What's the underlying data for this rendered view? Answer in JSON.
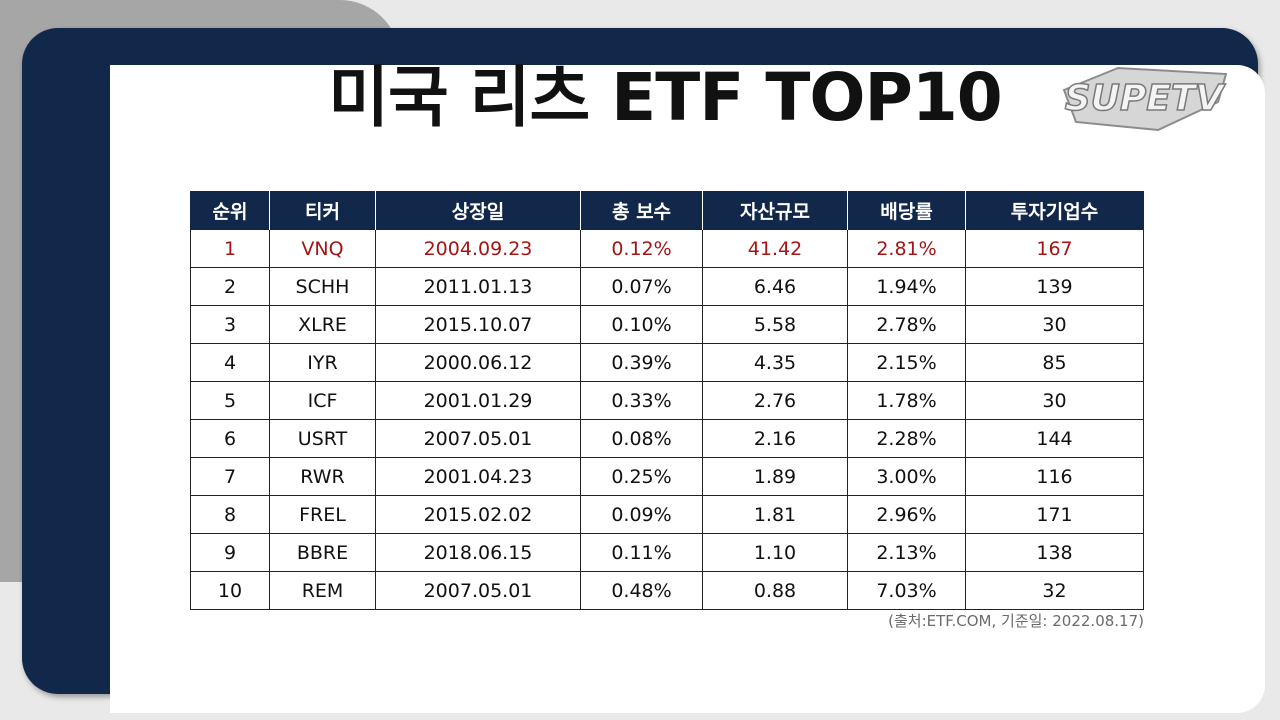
{
  "title": "미국 리츠 ETF TOP10",
  "logo_text": "SUPETV",
  "table": {
    "headers": [
      "순위",
      "티커",
      "상장일",
      "총 보수",
      "자산규모",
      "배당률",
      "투자기업수"
    ],
    "rows": [
      [
        "1",
        "VNQ",
        "2004.09.23",
        "0.12%",
        "41.42",
        "2.81%",
        "167"
      ],
      [
        "2",
        "SCHH",
        "2011.01.13",
        "0.07%",
        "6.46",
        "1.94%",
        "139"
      ],
      [
        "3",
        "XLRE",
        "2015.10.07",
        "0.10%",
        "5.58",
        "2.78%",
        "30"
      ],
      [
        "4",
        "IYR",
        "2000.06.12",
        "0.39%",
        "4.35",
        "2.15%",
        "85"
      ],
      [
        "5",
        "ICF",
        "2001.01.29",
        "0.33%",
        "2.76",
        "1.78%",
        "30"
      ],
      [
        "6",
        "USRT",
        "2007.05.01",
        "0.08%",
        "2.16",
        "2.28%",
        "144"
      ],
      [
        "7",
        "RWR",
        "2001.04.23",
        "0.25%",
        "1.89",
        "3.00%",
        "116"
      ],
      [
        "8",
        "FREL",
        "2015.02.02",
        "0.09%",
        "1.81",
        "2.96%",
        "171"
      ],
      [
        "9",
        "BBRE",
        "2018.06.15",
        "0.11%",
        "1.10",
        "2.13%",
        "138"
      ],
      [
        "10",
        "REM",
        "2007.05.01",
        "0.48%",
        "0.88",
        "7.03%",
        "32"
      ]
    ]
  },
  "source_note": "(출처:ETF.COM, 기준일: 2022.08.17)",
  "colors": {
    "navy": "#12284a",
    "highlight_red": "#a31515",
    "grey_tab": "#a6a6a6"
  }
}
